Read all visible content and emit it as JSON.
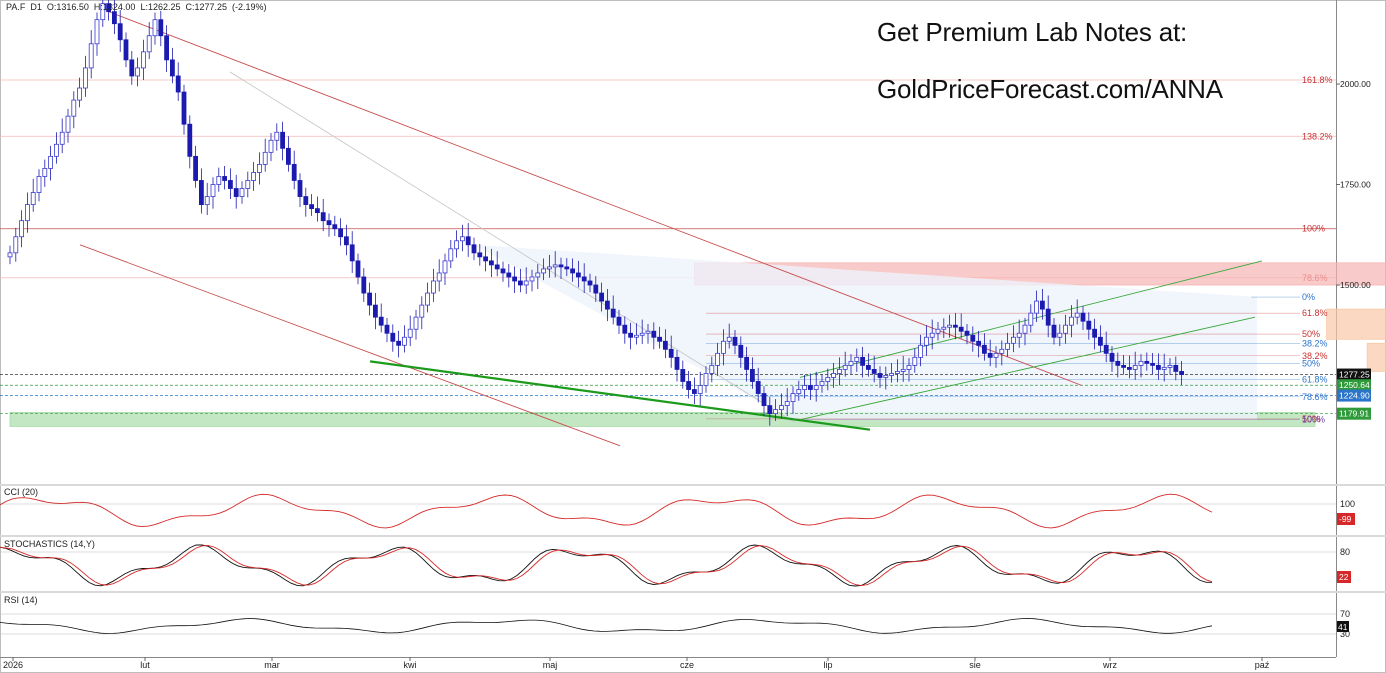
{
  "header": {
    "symbol": "PA.F",
    "timeframe": "D1",
    "open": "O:1316.50",
    "high": "H:1324.00",
    "low": "L:1262.25",
    "close": "C:1277.25",
    "change": "(-2.19%)"
  },
  "promo": {
    "line1": "Get Premium Lab Notes at:",
    "line2": "GoldPriceForecast.com/ANNA"
  },
  "chart_data": {
    "type": "candlestick",
    "price_axis": {
      "ticks": [
        "2000.00",
        "1750.00",
        "1500.00"
      ],
      "tick_values": [
        2000,
        1750,
        1500
      ]
    },
    "time_axis": {
      "labels": [
        "2026",
        "lut",
        "mar",
        "kwi",
        "maj",
        "cze",
        "lip",
        "sie",
        "wrz",
        "paź"
      ]
    },
    "price_badges": [
      {
        "label": "1277.25",
        "value": 1277.25,
        "color": "#111111"
      },
      {
        "label": "1250.64",
        "value": 1250.64,
        "color": "#2e9a3a"
      },
      {
        "label": "1224.90",
        "value": 1224.9,
        "color": "#2a74c9"
      },
      {
        "label": "1179.91",
        "value": 1179.91,
        "color": "#2e9a3a"
      }
    ],
    "fib_extension": [
      {
        "label": "161.8%",
        "value": 2010
      },
      {
        "label": "138.2%",
        "value": 1870
      },
      {
        "label": "100%",
        "value": 1640
      },
      {
        "label": "78.6%",
        "value": 1518
      }
    ],
    "fib_retracement": [
      {
        "label": "0%",
        "value": 1470
      },
      {
        "label": "61.8%",
        "value": 1430
      },
      {
        "label": "50%",
        "value": 1378
      },
      {
        "label": "38.2%",
        "value": 1355
      },
      {
        "label": "38.2%",
        "value": 1324
      },
      {
        "label": "50%",
        "value": 1305
      },
      {
        "label": "61.8%",
        "value": 1265
      },
      {
        "label": "78.6%",
        "value": 1222
      },
      {
        "label": "50%",
        "value": 1167
      },
      {
        "label": "100%",
        "value": 1165
      }
    ],
    "zones": [
      {
        "name": "resistance-zone",
        "color": "#f7b3b3",
        "x_start": 118,
        "x_end": 242,
        "y_low": 1500,
        "y_high": 1555
      },
      {
        "name": "support-zone",
        "color": "#a9dca9",
        "x_start": 0,
        "x_end": 225,
        "y_low": 1148,
        "y_high": 1183
      },
      {
        "name": "consolidation-upper",
        "color": "#f9c8a6",
        "x_start": 227,
        "x_end": 250,
        "y_low": 1365,
        "y_high": 1440
      },
      {
        "name": "consolidation-lower",
        "color": "#f9c8a6",
        "x_start": 234,
        "x_end": 262,
        "y_low": 1285,
        "y_high": 1355
      }
    ],
    "candles": {
      "close": [
        1580,
        1620,
        1660,
        1700,
        1730,
        1770,
        1790,
        1820,
        1850,
        1880,
        1920,
        1960,
        1990,
        2040,
        2100,
        2160,
        2200,
        2180,
        2150,
        2110,
        2060,
        2020,
        2040,
        2080,
        2120,
        2160,
        2120,
        2060,
        2020,
        1980,
        1900,
        1820,
        1760,
        1700,
        1720,
        1750,
        1770,
        1760,
        1740,
        1720,
        1740,
        1760,
        1780,
        1800,
        1830,
        1860,
        1880,
        1840,
        1800,
        1760,
        1720,
        1700,
        1690,
        1680,
        1660,
        1650,
        1640,
        1620,
        1600,
        1560,
        1520,
        1480,
        1450,
        1420,
        1400,
        1380,
        1360,
        1350,
        1370,
        1390,
        1420,
        1450,
        1480,
        1510,
        1530,
        1560,
        1590,
        1610,
        1620,
        1600,
        1580,
        1570,
        1560,
        1550,
        1540,
        1530,
        1520,
        1510,
        1500,
        1510,
        1520,
        1530,
        1540,
        1545,
        1550,
        1545,
        1540,
        1530,
        1520,
        1510,
        1500,
        1480,
        1460,
        1440,
        1420,
        1400,
        1380,
        1370,
        1375,
        1380,
        1385,
        1370,
        1360,
        1340,
        1320,
        1290,
        1260,
        1240,
        1230,
        1250,
        1280,
        1300,
        1330,
        1360,
        1370,
        1350,
        1320,
        1290,
        1260,
        1230,
        1200,
        1180,
        1190,
        1200,
        1210,
        1230,
        1240,
        1250,
        1240,
        1250,
        1260,
        1270,
        1280,
        1290,
        1300,
        1310,
        1320,
        1300,
        1290,
        1280,
        1270,
        1275,
        1280,
        1285,
        1290,
        1300,
        1320,
        1350,
        1370,
        1380,
        1390,
        1395,
        1400,
        1395,
        1385,
        1375,
        1360,
        1350,
        1330,
        1320,
        1330,
        1340,
        1355,
        1370,
        1380,
        1400,
        1430,
        1460,
        1440,
        1400,
        1370,
        1380,
        1400,
        1420,
        1430,
        1410,
        1390,
        1370,
        1350,
        1330,
        1310,
        1300,
        1295,
        1290,
        1300,
        1310,
        1305,
        1300,
        1290,
        1295,
        1300,
        1285,
        1277.25
      ]
    },
    "indicators": [
      {
        "name": "CCI (20)",
        "levels": [
          "100"
        ],
        "last": "-99",
        "last_color": "#d62828"
      },
      {
        "name": "STOCHASTICS (14,Y)",
        "levels": [
          "80"
        ],
        "last": "22",
        "last_color": "#d62828"
      },
      {
        "name": "RSI (14)",
        "levels": [
          "70",
          "30"
        ],
        "last": "41",
        "last_color": "#111111"
      }
    ]
  }
}
